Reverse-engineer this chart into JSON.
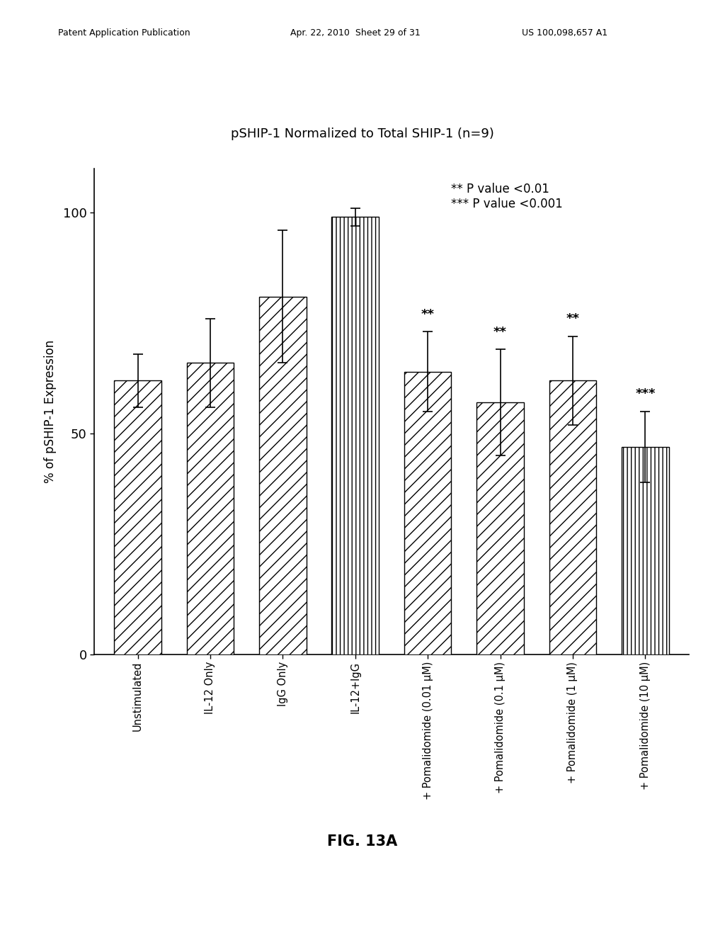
{
  "title": "pSHIP-1 Normalized to Total SHIP-1 (n=9)",
  "ylabel": "% of pSHIP-1 Expression",
  "categories": [
    "Unstimulated",
    "IL-12 Only",
    "IgG Only",
    "IL-12+IgG",
    "+ Pomalidomide (0.01 μM)",
    "+ Pomalidomide (0.1 μM)",
    "+ Pomalidomide (1 μM)",
    "+ Pomalidomide (10 μM)"
  ],
  "values": [
    62,
    66,
    81,
    99,
    64,
    57,
    62,
    47
  ],
  "errors": [
    6,
    10,
    15,
    2,
    9,
    12,
    10,
    8
  ],
  "significance": [
    "",
    "",
    "",
    "",
    "**",
    "**",
    "**",
    "***"
  ],
  "ylim": [
    0,
    110
  ],
  "yticks": [
    0,
    50,
    100
  ],
  "hatch_patterns": [
    "//",
    "//",
    "//",
    "|||",
    "//",
    "//",
    "//",
    "|||"
  ],
  "bar_color": "#ffffff",
  "bar_edgecolor": "#000000",
  "legend_lines": [
    "** P value <0.01",
    "*** P value <0.001"
  ],
  "fig_caption": "FIG. 13A",
  "header_left": "Patent Application Publication",
  "header_mid": "Apr. 22, 2010  Sheet 29 of 31",
  "header_right": "US 100,098,657 A1",
  "background_color": "#ffffff"
}
